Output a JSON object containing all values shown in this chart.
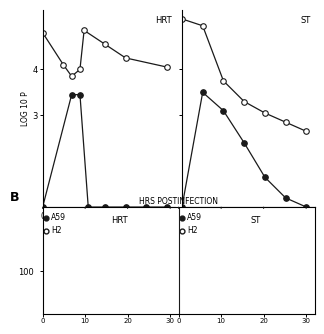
{
  "panel_left": {
    "label": "HRT",
    "open_x": [
      0,
      5,
      7,
      9,
      10,
      15,
      20,
      30
    ],
    "open_y": [
      4.8,
      4.1,
      3.85,
      4.0,
      4.85,
      4.55,
      4.25,
      4.05
    ],
    "filled_x": [
      0,
      7,
      9,
      11,
      15,
      20,
      25,
      30
    ],
    "filled_y": [
      1.0,
      3.45,
      3.45,
      1.0,
      1.0,
      1.0,
      1.0,
      1.0
    ]
  },
  "panel_right": {
    "label": "ST",
    "open_x": [
      0,
      5,
      10,
      15,
      20,
      25,
      30
    ],
    "open_y": [
      5.1,
      4.95,
      3.75,
      3.3,
      3.05,
      2.85,
      2.65
    ],
    "filled_x": [
      0,
      5,
      10,
      15,
      20,
      25,
      30
    ],
    "filled_y": [
      1.0,
      3.5,
      3.1,
      2.4,
      1.65,
      1.2,
      1.0
    ]
  },
  "ylim": [
    1.0,
    5.3
  ],
  "yticks": [
    3,
    4
  ],
  "ytick_labels": [
    "3",
    "4"
  ],
  "xlim": [
    0,
    32
  ],
  "xticks": [
    0,
    10,
    20,
    30
  ],
  "ylabel": "LOG 10 P",
  "xlabel": "HRS POSTINFECTION",
  "legend_a59": "A59",
  "legend_h2": "H2",
  "panel_b_label": "B",
  "panel_b_ytick": "100",
  "line_color": "#1a1a1a",
  "marker_size": 4,
  "lw": 0.9
}
